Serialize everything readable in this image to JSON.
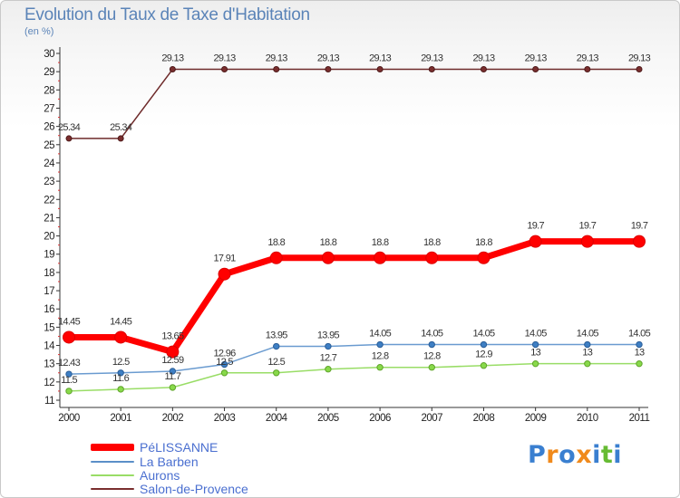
{
  "chart_data": {
    "type": "line",
    "title": "Evolution du Taux de Taxe d'Habitation",
    "subtitle": "(en %)",
    "x": [
      "2000",
      "2001",
      "2002",
      "2003",
      "2004",
      "2005",
      "2006",
      "2007",
      "2008",
      "2009",
      "2010",
      "2011"
    ],
    "ylim": [
      11,
      30
    ],
    "yticks": [
      11,
      12,
      13,
      14,
      15,
      16,
      17,
      18,
      19,
      20,
      21,
      22,
      23,
      24,
      25,
      26,
      27,
      28,
      29,
      30
    ],
    "grid": false,
    "legend_position": "bottom-left",
    "series": [
      {
        "name": "Salon-de-Provence",
        "color": "#7a2e2e",
        "values": [
          25.34,
          25.34,
          29.13,
          29.13,
          29.13,
          29.13,
          29.13,
          29.13,
          29.13,
          29.13,
          29.13,
          29.13
        ],
        "labels": [
          "25.34",
          "25.34",
          "29.13",
          "29.13",
          "29.13",
          "29.13",
          "29.13",
          "29.13",
          "29.13",
          "29.13",
          "29.13",
          "29.13"
        ]
      },
      {
        "name": "PéLISSANNE",
        "color": "#ff0000",
        "values": [
          14.45,
          14.45,
          13.65,
          17.91,
          18.8,
          18.8,
          18.8,
          18.8,
          18.8,
          19.7,
          19.7,
          19.7
        ],
        "labels": [
          "14.45",
          "14.45",
          "13.65",
          "17.91",
          "18.8",
          "18.8",
          "18.8",
          "18.8",
          "18.8",
          "19.7",
          "19.7",
          "19.7"
        ]
      },
      {
        "name": "La Barben",
        "color": "#5b8fc8",
        "values": [
          12.43,
          12.5,
          12.59,
          12.96,
          13.95,
          13.95,
          14.05,
          14.05,
          14.05,
          14.05,
          14.05,
          14.05
        ],
        "labels": [
          "12.43",
          "12.5",
          "12.59",
          "12.96",
          "13.95",
          "13.95",
          "14.05",
          "14.05",
          "14.05",
          "14.05",
          "14.05",
          "14.05"
        ]
      },
      {
        "name": "Aurons",
        "color": "#99dd66",
        "values": [
          11.5,
          11.6,
          11.7,
          12.5,
          12.5,
          12.7,
          12.8,
          12.8,
          12.9,
          13,
          13,
          13
        ],
        "labels": [
          "11.5",
          "11.6",
          "11.7",
          "12.5",
          "12.5",
          "12.7",
          "12.8",
          "12.8",
          "12.9",
          "13",
          "13",
          "13"
        ]
      }
    ]
  },
  "legend": [
    {
      "name": "PéLISSANNE",
      "color": "#ff0000",
      "thickness": 8
    },
    {
      "name": "La Barben",
      "color": "#5b8fc8",
      "thickness": 2
    },
    {
      "name": "Aurons",
      "color": "#99dd66",
      "thickness": 2
    },
    {
      "name": "Salon-de-Provence",
      "color": "#7a2e2e",
      "thickness": 2
    }
  ],
  "logo": {
    "letters": [
      "P",
      "r",
      "o",
      "x",
      "i",
      "t",
      "i"
    ],
    "colors": [
      "#3a7fd0",
      "#f08a1c",
      "#3a7fd0",
      "#f08a1c",
      "#3a7fd0",
      "#66bb33",
      "#3a7fd0"
    ]
  }
}
